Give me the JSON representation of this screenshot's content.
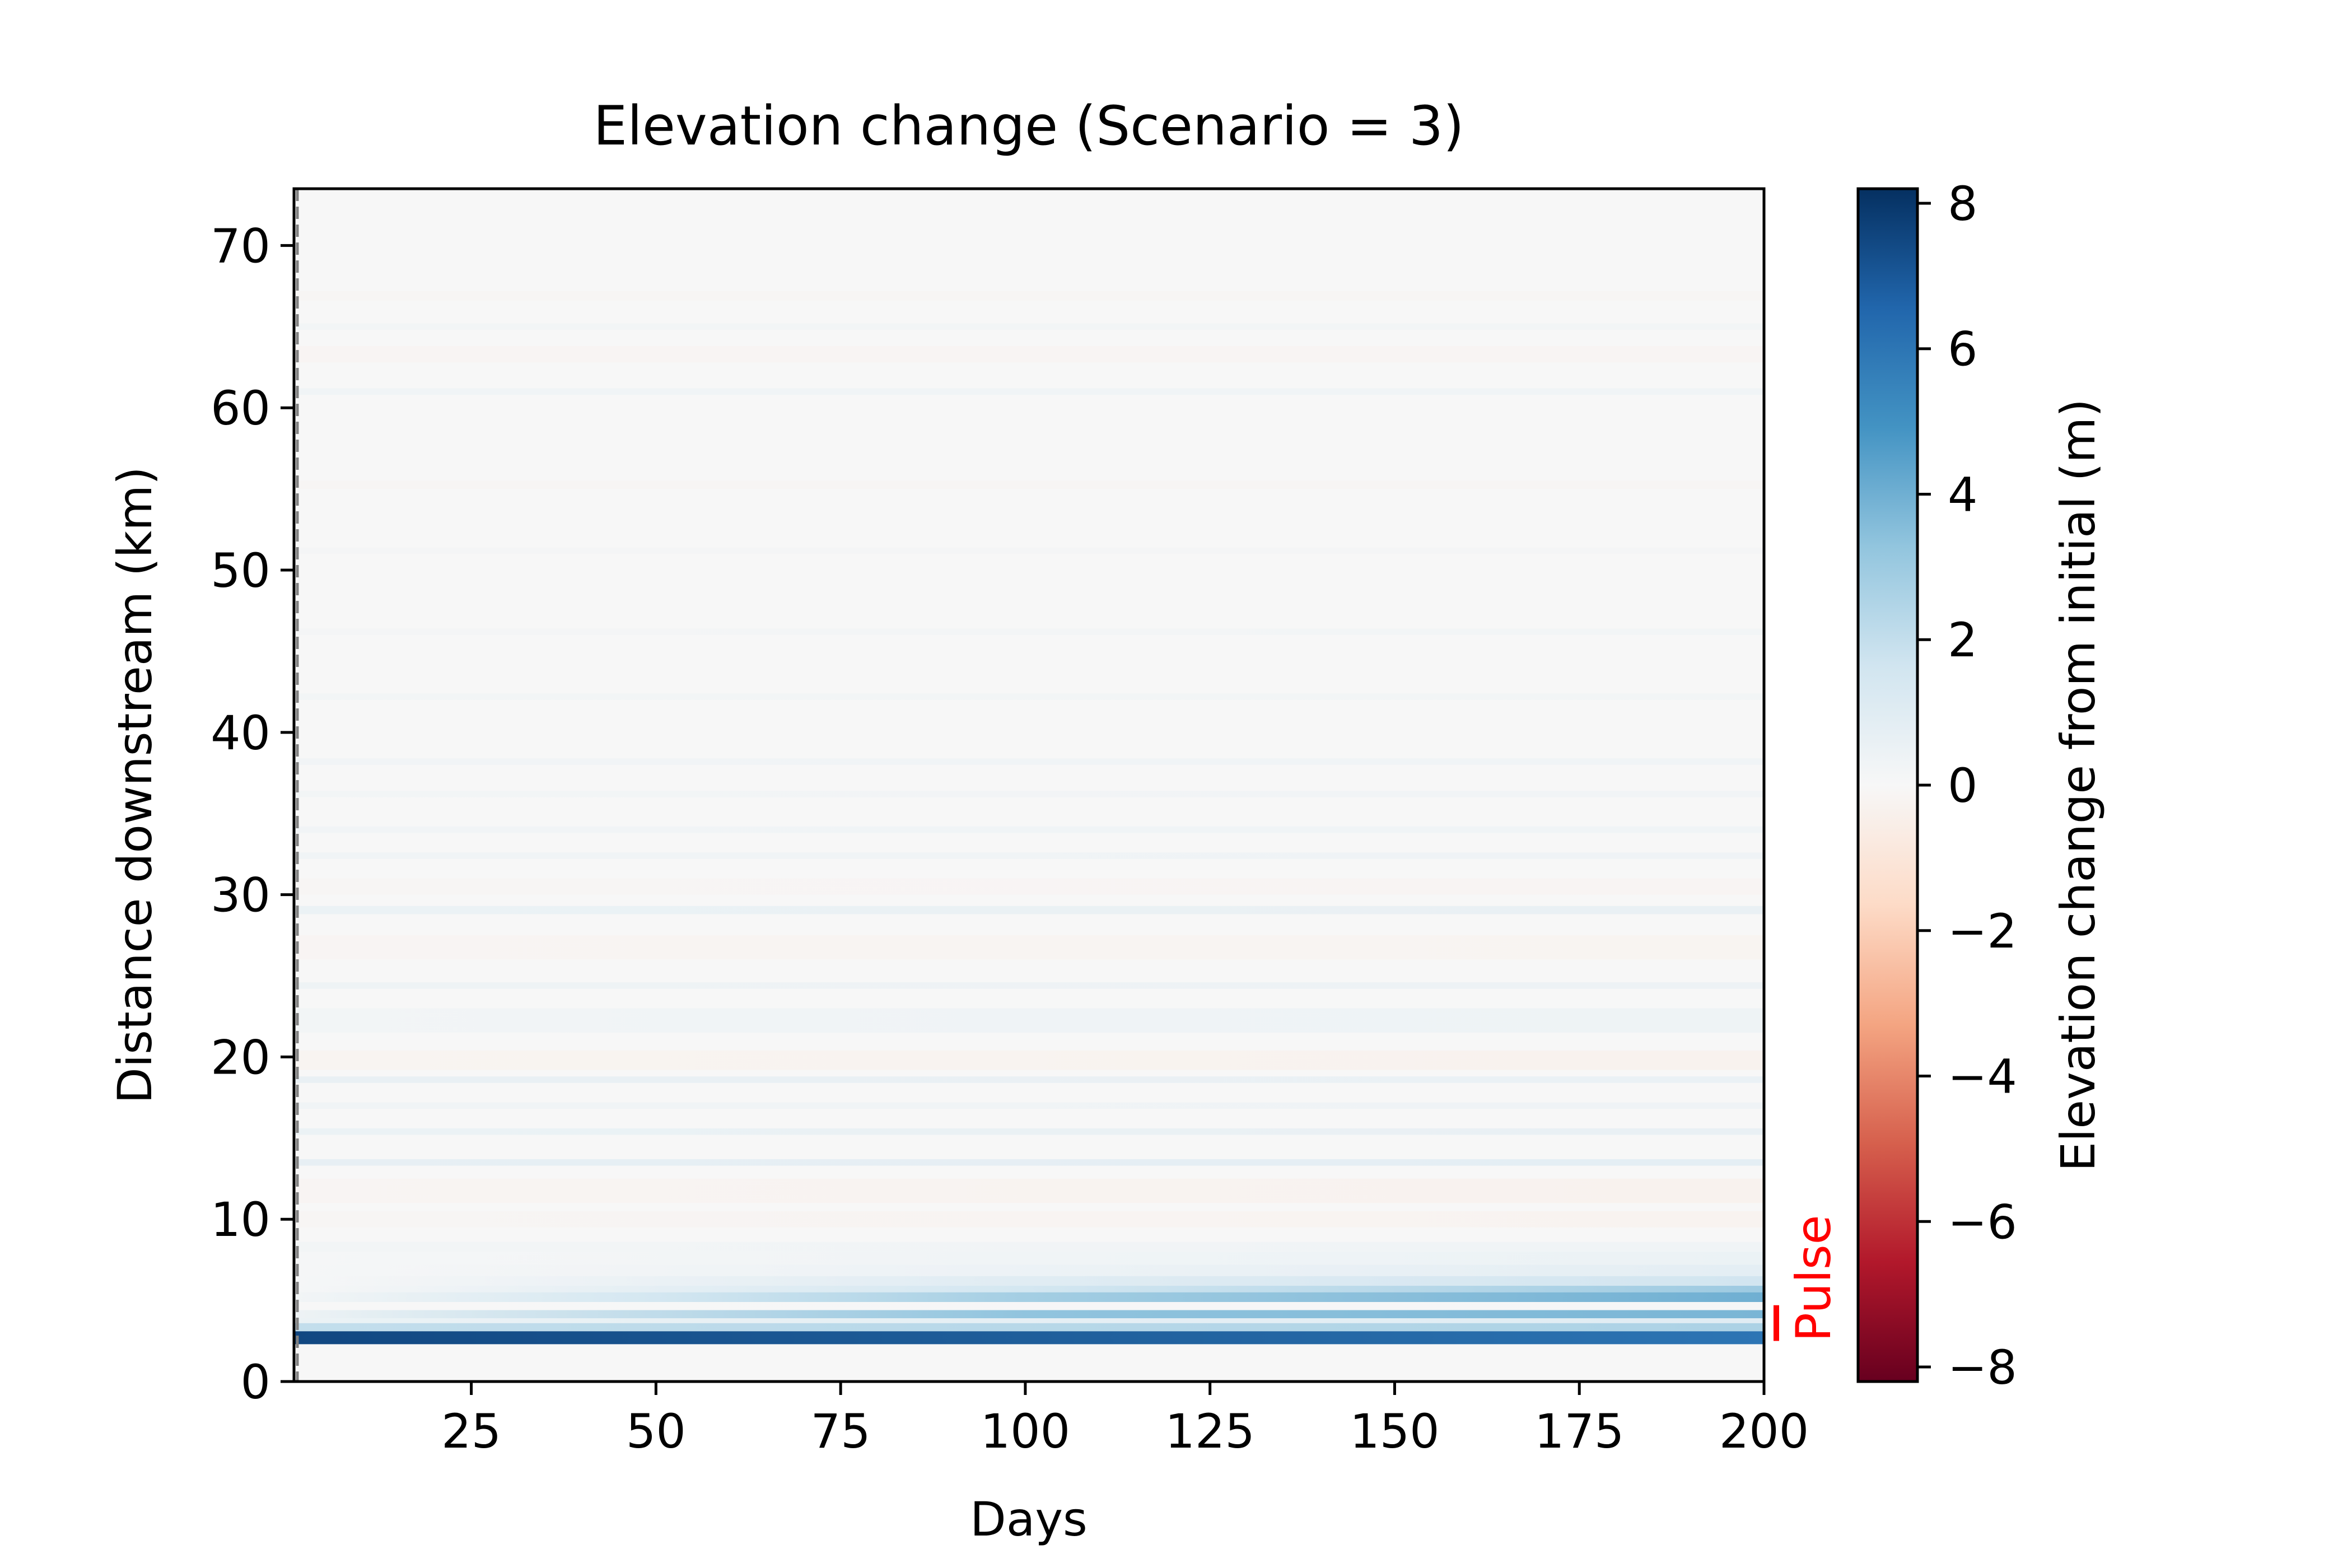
{
  "chart_data": {
    "type": "heatmap",
    "title": "Elevation change (Scenario = 3)",
    "xlabel": "Days",
    "ylabel": "Distance downstream (km)",
    "xlim": [
      1,
      200
    ],
    "ylim": [
      0,
      73.5
    ],
    "x_ticks": [
      25,
      50,
      75,
      100,
      125,
      150,
      175,
      200
    ],
    "x_tick_labels": [
      "25",
      "50",
      "75",
      "100",
      "125",
      "150",
      "175",
      "200"
    ],
    "y_ticks": [
      0,
      10,
      20,
      30,
      40,
      50,
      60,
      70
    ],
    "y_tick_labels": [
      "0",
      "10",
      "20",
      "30",
      "40",
      "50",
      "60",
      "70"
    ],
    "colorbar": {
      "label": "Elevation change from initial (m)",
      "colormap": "RdBu",
      "vmin": -8.2,
      "vmax": 8.2,
      "ticks": [
        8,
        6,
        4,
        2,
        0,
        -2,
        -4,
        -6,
        -8
      ],
      "tick_labels": [
        "8",
        "6",
        "4",
        "2",
        "0",
        "−2",
        "−4",
        "−6",
        "−8"
      ]
    },
    "start_marker": {
      "x": 1,
      "style": "dashed",
      "color": "#808080"
    },
    "pulse": {
      "label": "Pulse",
      "y_range": [
        2.5,
        4.7
      ],
      "color": "#ff0000"
    },
    "bands": [
      {
        "y0": 2.3,
        "y1": 3.1,
        "values": [
          [
            1,
            7.5
          ],
          [
            200,
            6.0
          ]
        ]
      },
      {
        "y0": 3.1,
        "y1": 3.6,
        "values": [
          [
            1,
            2.0
          ],
          [
            200,
            2.6
          ]
        ]
      },
      {
        "y0": 3.6,
        "y1": 3.9,
        "values": [
          [
            1,
            0.5
          ],
          [
            200,
            1.0
          ]
        ]
      },
      {
        "y0": 3.9,
        "y1": 4.4,
        "values": [
          [
            1,
            0.4
          ],
          [
            100,
            3.3
          ],
          [
            200,
            3.8
          ]
        ]
      },
      {
        "y0": 4.4,
        "y1": 4.9,
        "values": [
          [
            1,
            0.0
          ],
          [
            200,
            0.1
          ]
        ]
      },
      {
        "y0": 4.9,
        "y1": 5.5,
        "values": [
          [
            1,
            0.2
          ],
          [
            50,
            1.5
          ],
          [
            100,
            2.8
          ],
          [
            200,
            4.0
          ]
        ]
      },
      {
        "y0": 5.5,
        "y1": 5.9,
        "values": [
          [
            1,
            0.1
          ],
          [
            100,
            1.5
          ],
          [
            200,
            3.0
          ]
        ]
      },
      {
        "y0": 5.9,
        "y1": 6.5,
        "values": [
          [
            1,
            0.1
          ],
          [
            100,
            1.0
          ],
          [
            200,
            1.6
          ]
        ]
      },
      {
        "y0": 6.5,
        "y1": 7.2,
        "values": [
          [
            1,
            0.1
          ],
          [
            200,
            0.8
          ]
        ]
      },
      {
        "y0": 7.2,
        "y1": 8.0,
        "values": [
          [
            1,
            0.1
          ],
          [
            200,
            0.5
          ]
        ]
      },
      {
        "y0": 8.0,
        "y1": 8.6,
        "values": [
          [
            1,
            0.2
          ],
          [
            200,
            0.3
          ]
        ]
      },
      {
        "y0": 9.5,
        "y1": 10.5,
        "values": [
          [
            1,
            -0.1
          ],
          [
            200,
            -0.25
          ]
        ]
      },
      {
        "y0": 11.0,
        "y1": 12.5,
        "values": [
          [
            1,
            -0.15
          ],
          [
            200,
            -0.3
          ]
        ]
      },
      {
        "y0": 13.3,
        "y1": 13.7,
        "values": [
          [
            1,
            0.7
          ],
          [
            200,
            0.8
          ]
        ]
      },
      {
        "y0": 15.2,
        "y1": 15.6,
        "values": [
          [
            1,
            0.5
          ],
          [
            200,
            0.6
          ]
        ]
      },
      {
        "y0": 16.8,
        "y1": 17.2,
        "values": [
          [
            1,
            0.3
          ],
          [
            200,
            0.35
          ]
        ]
      },
      {
        "y0": 18.4,
        "y1": 18.8,
        "values": [
          [
            1,
            0.6
          ],
          [
            200,
            0.55
          ]
        ]
      },
      {
        "y0": 19.2,
        "y1": 20.4,
        "values": [
          [
            1,
            -0.2
          ],
          [
            200,
            -0.3
          ]
        ]
      },
      {
        "y0": 21.5,
        "y1": 23.0,
        "values": [
          [
            1,
            0.2
          ],
          [
            100,
            0.35
          ],
          [
            200,
            0.4
          ]
        ]
      },
      {
        "y0": 24.2,
        "y1": 24.6,
        "values": [
          [
            1,
            0.4
          ],
          [
            200,
            0.45
          ]
        ]
      },
      {
        "y0": 26.0,
        "y1": 27.5,
        "values": [
          [
            1,
            -0.15
          ],
          [
            200,
            -0.2
          ]
        ]
      },
      {
        "y0": 28.8,
        "y1": 29.3,
        "values": [
          [
            1,
            0.5
          ],
          [
            200,
            0.6
          ]
        ]
      },
      {
        "y0": 30.0,
        "y1": 31.0,
        "values": [
          [
            1,
            -0.1
          ],
          [
            200,
            -0.15
          ]
        ]
      },
      {
        "y0": 32.2,
        "y1": 32.6,
        "values": [
          [
            1,
            0.3
          ],
          [
            200,
            0.35
          ]
        ]
      },
      {
        "y0": 33.8,
        "y1": 34.2,
        "values": [
          [
            1,
            0.25
          ],
          [
            200,
            0.3
          ]
        ]
      },
      {
        "y0": 36.0,
        "y1": 36.4,
        "values": [
          [
            1,
            0.2
          ],
          [
            200,
            0.25
          ]
        ]
      },
      {
        "y0": 38.0,
        "y1": 38.4,
        "values": [
          [
            1,
            0.25
          ],
          [
            200,
            0.3
          ]
        ]
      },
      {
        "y0": 42.0,
        "y1": 42.4,
        "values": [
          [
            1,
            0.2
          ],
          [
            200,
            0.2
          ]
        ]
      },
      {
        "y0": 46.0,
        "y1": 46.4,
        "values": [
          [
            1,
            0.15
          ],
          [
            200,
            0.2
          ]
        ]
      },
      {
        "y0": 51.0,
        "y1": 51.4,
        "values": [
          [
            1,
            0.15
          ],
          [
            200,
            0.15
          ]
        ]
      },
      {
        "y0": 55.0,
        "y1": 55.5,
        "values": [
          [
            1,
            -0.1
          ],
          [
            200,
            -0.1
          ]
        ]
      },
      {
        "y0": 60.8,
        "y1": 61.2,
        "values": [
          [
            1,
            0.3
          ],
          [
            200,
            0.3
          ]
        ]
      },
      {
        "y0": 62.8,
        "y1": 63.8,
        "values": [
          [
            1,
            -0.15
          ],
          [
            200,
            -0.15
          ]
        ]
      },
      {
        "y0": 64.8,
        "y1": 65.2,
        "values": [
          [
            1,
            0.2
          ],
          [
            200,
            0.2
          ]
        ]
      },
      {
        "y0": 66.6,
        "y1": 67.2,
        "values": [
          [
            1,
            -0.1
          ],
          [
            200,
            -0.1
          ]
        ]
      }
    ]
  }
}
